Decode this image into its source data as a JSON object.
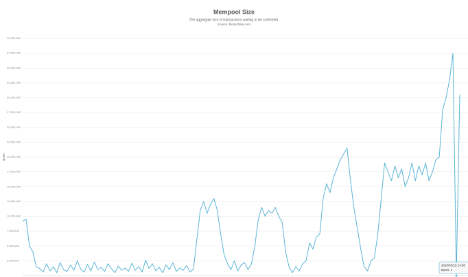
{
  "chart_data": {
    "type": "line",
    "title": "Mempool Size",
    "subtitle": "The aggregate size of transactions waiting to be confirmed.",
    "source": "Source: blockchain.com",
    "y_label": "Bytes",
    "color": "#5ab4d6",
    "grid": true,
    "ylim": [
      0,
      40000000
    ],
    "yticks": [
      {
        "value": 2500000,
        "label": "2,500,000"
      },
      {
        "value": 5000000,
        "label": "5,000,000"
      },
      {
        "value": 7500000,
        "label": "7,500,000"
      },
      {
        "value": 10000000,
        "label": "10,000,000"
      },
      {
        "value": 12500000,
        "label": "12,500,000"
      },
      {
        "value": 15000000,
        "label": "15,000,000"
      },
      {
        "value": 17500000,
        "label": "17,500,000"
      },
      {
        "value": 20000000,
        "label": "20,000,000"
      },
      {
        "value": 22500000,
        "label": "22,500,000"
      },
      {
        "value": 25000000,
        "label": "25,000,000"
      },
      {
        "value": 27500000,
        "label": "27,500,000"
      },
      {
        "value": 30000000,
        "label": "30,000,000"
      },
      {
        "value": 32500000,
        "label": "32,500,000"
      },
      {
        "value": 35000000,
        "label": "35,000,000"
      },
      {
        "value": 37500000,
        "label": "37,500,000"
      },
      {
        "value": 40000000,
        "label": "40,000,000"
      }
    ],
    "values": [
      9200000,
      9500000,
      5000000,
      4000000,
      1500000,
      1200000,
      600000,
      2000000,
      800000,
      1500000,
      500000,
      2200000,
      1000000,
      700000,
      1800000,
      900000,
      2500000,
      1100000,
      600000,
      1900000,
      800000,
      2300000,
      1000000,
      1400000,
      700000,
      2000000,
      1200000,
      500000,
      1600000,
      900000,
      1300000,
      700000,
      2100000,
      900000,
      1500000,
      600000,
      2600000,
      1200000,
      2000000,
      800000,
      1400000,
      500000,
      1800000,
      1000000,
      2200000,
      700000,
      1300000,
      900000,
      1700000,
      600000,
      1100000,
      6000000,
      11000000,
      12500000,
      10500000,
      12000000,
      13000000,
      11000000,
      7000000,
      3500000,
      2000000,
      1000000,
      2500000,
      800000,
      1800000,
      2200000,
      1000000,
      2000000,
      5000000,
      9500000,
      11500000,
      10000000,
      11000000,
      10500000,
      11500000,
      10000000,
      9000000,
      4000000,
      1500000,
      500000,
      1500000,
      800000,
      2000000,
      2500000,
      5500000,
      4500000,
      6500000,
      7000000,
      13000000,
      15500000,
      14000000,
      16500000,
      18000000,
      19500000,
      20500000,
      21500000,
      16000000,
      11500000,
      8000000,
      4500000,
      1500000,
      800000,
      2500000,
      3000000,
      7000000,
      13000000,
      19000000,
      17500000,
      16000000,
      18500000,
      16500000,
      18000000,
      15000000,
      16500000,
      19000000,
      16000000,
      18500000,
      17000000,
      19000000,
      16000000,
      17500000,
      19500000,
      20000000,
      28000000,
      30000000,
      33000000,
      37500000,
      1,
      30500000
    ],
    "tooltip": {
      "title": "2020/03/15 14:00",
      "label": "Bytes: 1"
    }
  }
}
